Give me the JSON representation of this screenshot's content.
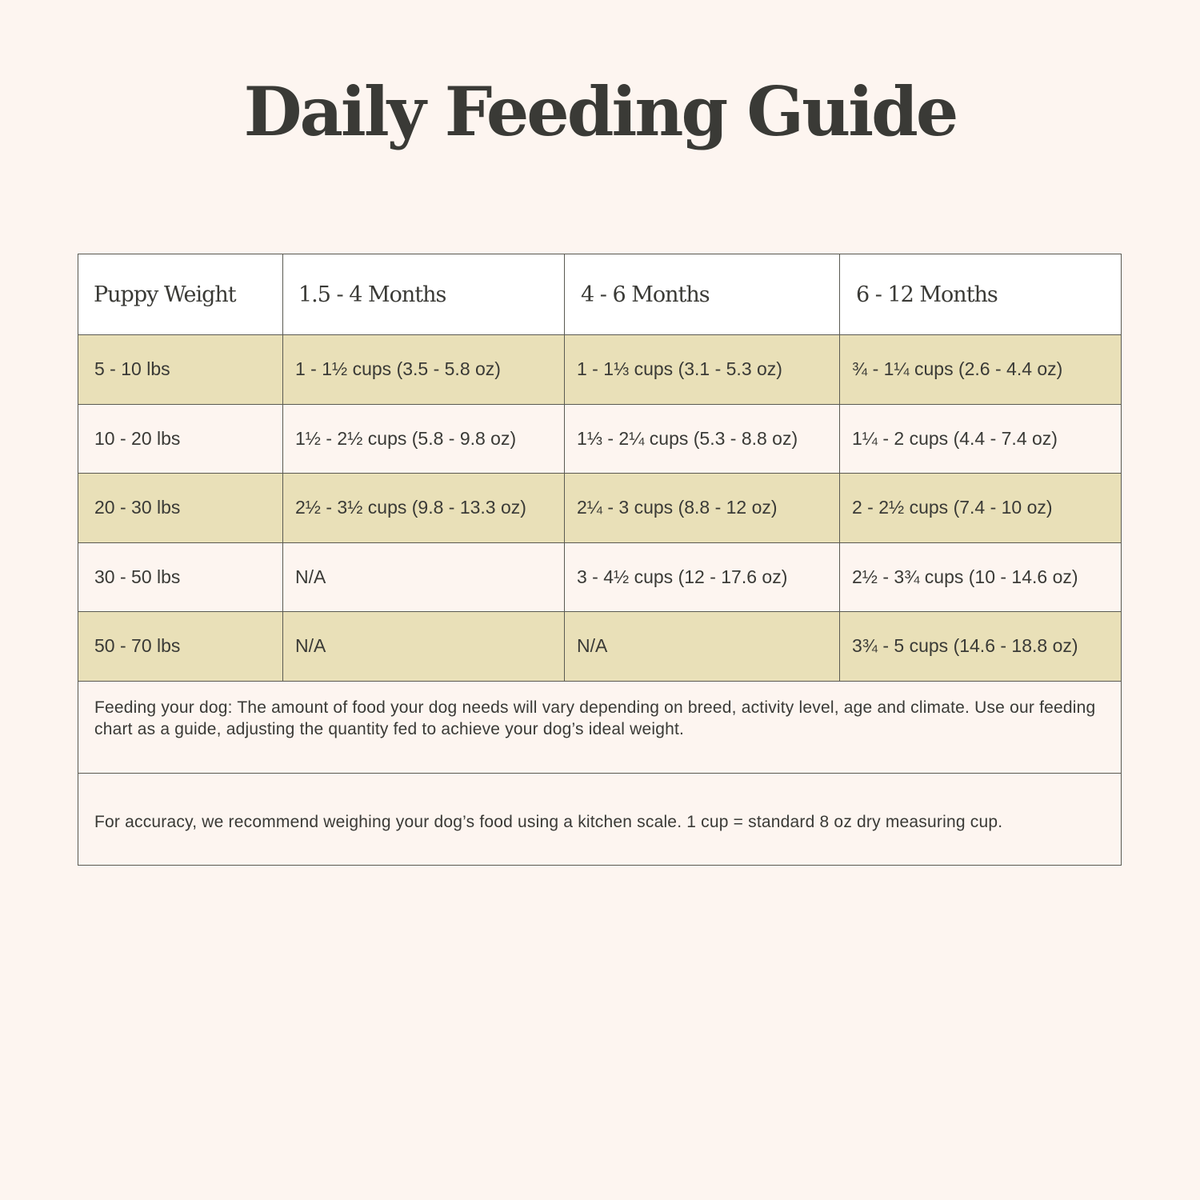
{
  "title": "Daily Feeding Guide",
  "table": {
    "headers": [
      "Puppy Weight",
      "1.5 - 4 Months",
      "4 - 6 Months",
      "6 - 12 Months"
    ],
    "rows": [
      {
        "weight": "5 - 10 lbs",
        "a": "1 - 1½ cups (3.5 - 5.8 oz)",
        "b": "1 - 1⅓ cups (3.1 - 5.3 oz)",
        "c": "¾ - 1¼ cups (2.6 - 4.4 oz)"
      },
      {
        "weight": "10 - 20 lbs",
        "a": "1½ - 2½ cups (5.8 - 9.8 oz)",
        "b": "1⅓ - 2¼ cups (5.3 - 8.8 oz)",
        "c": "1¼ - 2 cups (4.4 - 7.4 oz)"
      },
      {
        "weight": "20 - 30 lbs",
        "a": "2½ - 3½ cups (9.8 - 13.3 oz)",
        "b": "2¼ - 3 cups (8.8 - 12 oz)",
        "c": "2 - 2½ cups (7.4 - 10 oz)"
      },
      {
        "weight": "30 - 50 lbs",
        "a": "N/A",
        "b": "3 - 4½ cups (12 - 17.6 oz)",
        "c": "2½ - 3¾ cups (10 - 14.6 oz)"
      },
      {
        "weight": "50 - 70 lbs",
        "a": "N/A",
        "b": "N/A",
        "c": "3¾ - 5 cups (14.6 - 18.8 oz)"
      }
    ],
    "notes": [
      "Feeding your dog: The amount of food your dog needs will vary depending on breed, activity level, age and climate. Use our feeding chart as a guide, adjusting the quantity fed to achieve your dog’s ideal weight.",
      "For accuracy, we recommend weighing your dog’s food using a kitchen scale. 1 cup = standard 8 oz dry measuring cup."
    ]
  },
  "colors": {
    "background": "#fdf5f0",
    "shaded_row": "#e9e0b8",
    "header_background": "#ffffff",
    "text": "#3a3a36",
    "border": "#5a5a52"
  }
}
